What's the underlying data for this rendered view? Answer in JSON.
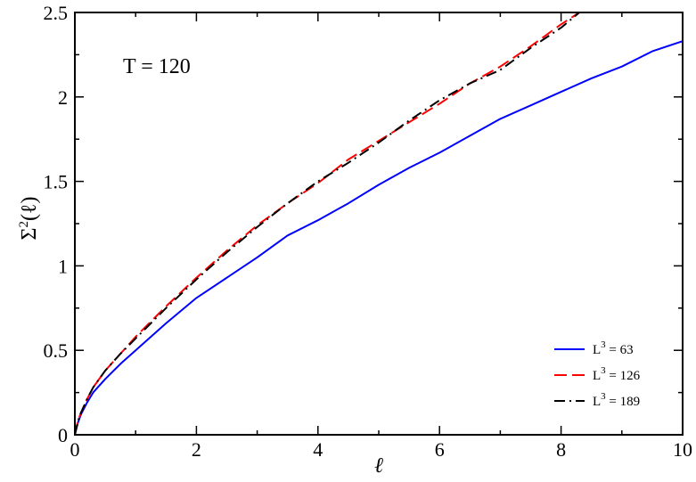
{
  "chart_data": {
    "type": "line",
    "xlabel": "ℓ",
    "ylabel": "Σ",
    "ylabel_sup": "2",
    "ylabel_arg": "(ℓ)",
    "annotation": "T = 120",
    "xlim": [
      0,
      10
    ],
    "ylim": [
      0,
      2.5
    ],
    "x_ticks": [
      0,
      2,
      4,
      6,
      8,
      10
    ],
    "x_tick_labels": [
      "0",
      "2",
      "4",
      "6",
      "8",
      "10"
    ],
    "y_ticks": [
      0,
      0.5,
      1,
      1.5,
      2,
      2.5
    ],
    "y_tick_labels": [
      "0",
      "0.5",
      "1",
      "1.5",
      "2",
      "2.5"
    ],
    "grid": false,
    "legend_position": "bottom-right",
    "series": [
      {
        "name_base": "L",
        "name_sup": "3",
        "name_rest": " = 63",
        "color": "#0000ff",
        "dash": "solid",
        "x": [
          0,
          0.05,
          0.1,
          0.2,
          0.3,
          0.5,
          0.75,
          1,
          1.5,
          2,
          2.5,
          3,
          3.5,
          4,
          4.5,
          5,
          5.5,
          6,
          6.5,
          7,
          7.5,
          8,
          8.5,
          9,
          9.5,
          10
        ],
        "y": [
          0,
          0.07,
          0.12,
          0.19,
          0.25,
          0.33,
          0.42,
          0.5,
          0.66,
          0.81,
          0.93,
          1.05,
          1.18,
          1.27,
          1.37,
          1.48,
          1.58,
          1.67,
          1.77,
          1.87,
          1.95,
          2.03,
          2.11,
          2.18,
          2.27,
          2.33
        ]
      },
      {
        "name_base": "L",
        "name_sup": "3",
        "name_rest": " = 126",
        "color": "#ff0000",
        "dash": "dashed",
        "x": [
          0,
          0.05,
          0.1,
          0.2,
          0.3,
          0.5,
          0.75,
          1,
          1.5,
          2,
          2.5,
          3,
          3.5,
          4,
          4.5,
          5,
          5.5,
          6,
          6.5,
          7,
          7.5,
          8,
          8.3
        ],
        "y": [
          0,
          0.08,
          0.13,
          0.21,
          0.28,
          0.38,
          0.48,
          0.58,
          0.76,
          0.93,
          1.09,
          1.24,
          1.37,
          1.49,
          1.63,
          1.74,
          1.85,
          1.96,
          2.08,
          2.18,
          2.3,
          2.43,
          2.5
        ]
      },
      {
        "name_base": "L",
        "name_sup": "3",
        "name_rest": " = 189",
        "color": "#000000",
        "dash": "dashdot",
        "x": [
          0,
          0.05,
          0.1,
          0.2,
          0.3,
          0.5,
          0.75,
          1,
          1.5,
          2,
          2.5,
          3,
          3.5,
          4,
          4.5,
          5,
          5.5,
          6,
          6.5,
          7,
          7.5,
          8,
          8.3
        ],
        "y": [
          0,
          0.08,
          0.13,
          0.21,
          0.28,
          0.38,
          0.48,
          0.57,
          0.75,
          0.92,
          1.08,
          1.23,
          1.37,
          1.5,
          1.61,
          1.73,
          1.86,
          1.98,
          2.08,
          2.16,
          2.29,
          2.41,
          2.5
        ]
      }
    ]
  }
}
